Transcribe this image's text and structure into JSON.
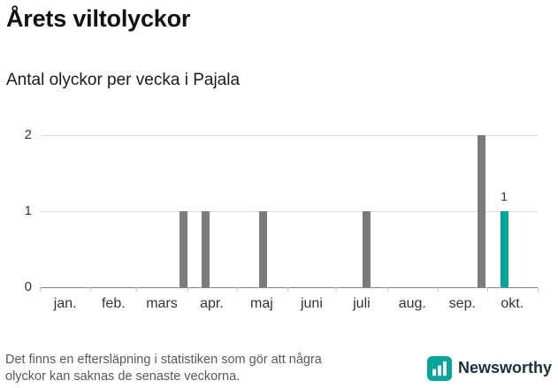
{
  "header": {
    "title": "Årets viltolyckor",
    "subtitle": "Antal olyckor per vecka i Pajala"
  },
  "chart_data": {
    "type": "bar",
    "title": "Årets viltolyckor",
    "subtitle": "Antal olyckor per vecka i Pajala",
    "ylim": [
      0,
      2
    ],
    "yticks": [
      0,
      1,
      2
    ],
    "grid": "horizontal",
    "x_axis": {
      "unit": "vecka",
      "months": [
        "jan.",
        "feb.",
        "mars",
        "apr.",
        "maj",
        "juni",
        "juli",
        "aug.",
        "sep.",
        "okt."
      ]
    },
    "bars": [
      {
        "week": 13,
        "value": 1
      },
      {
        "week": 15,
        "value": 1
      },
      {
        "week": 20,
        "value": 1
      },
      {
        "week": 29,
        "value": 1
      },
      {
        "week": 39,
        "value": 2
      },
      {
        "week": 41,
        "value": 1,
        "highlight": true,
        "label": "1"
      }
    ],
    "colors": {
      "bar": "#7a7a7a",
      "highlight": "#00a59b",
      "gridline": "#dcdcdc",
      "axis": "#8a8a8a",
      "text": "#333333"
    }
  },
  "footer": {
    "note_line1": "Det finns en eftersläpning i statistiken som gör att några",
    "note_line2": "olyckor kan saknas de senaste veckorna.",
    "brand": "Newsworthy"
  }
}
